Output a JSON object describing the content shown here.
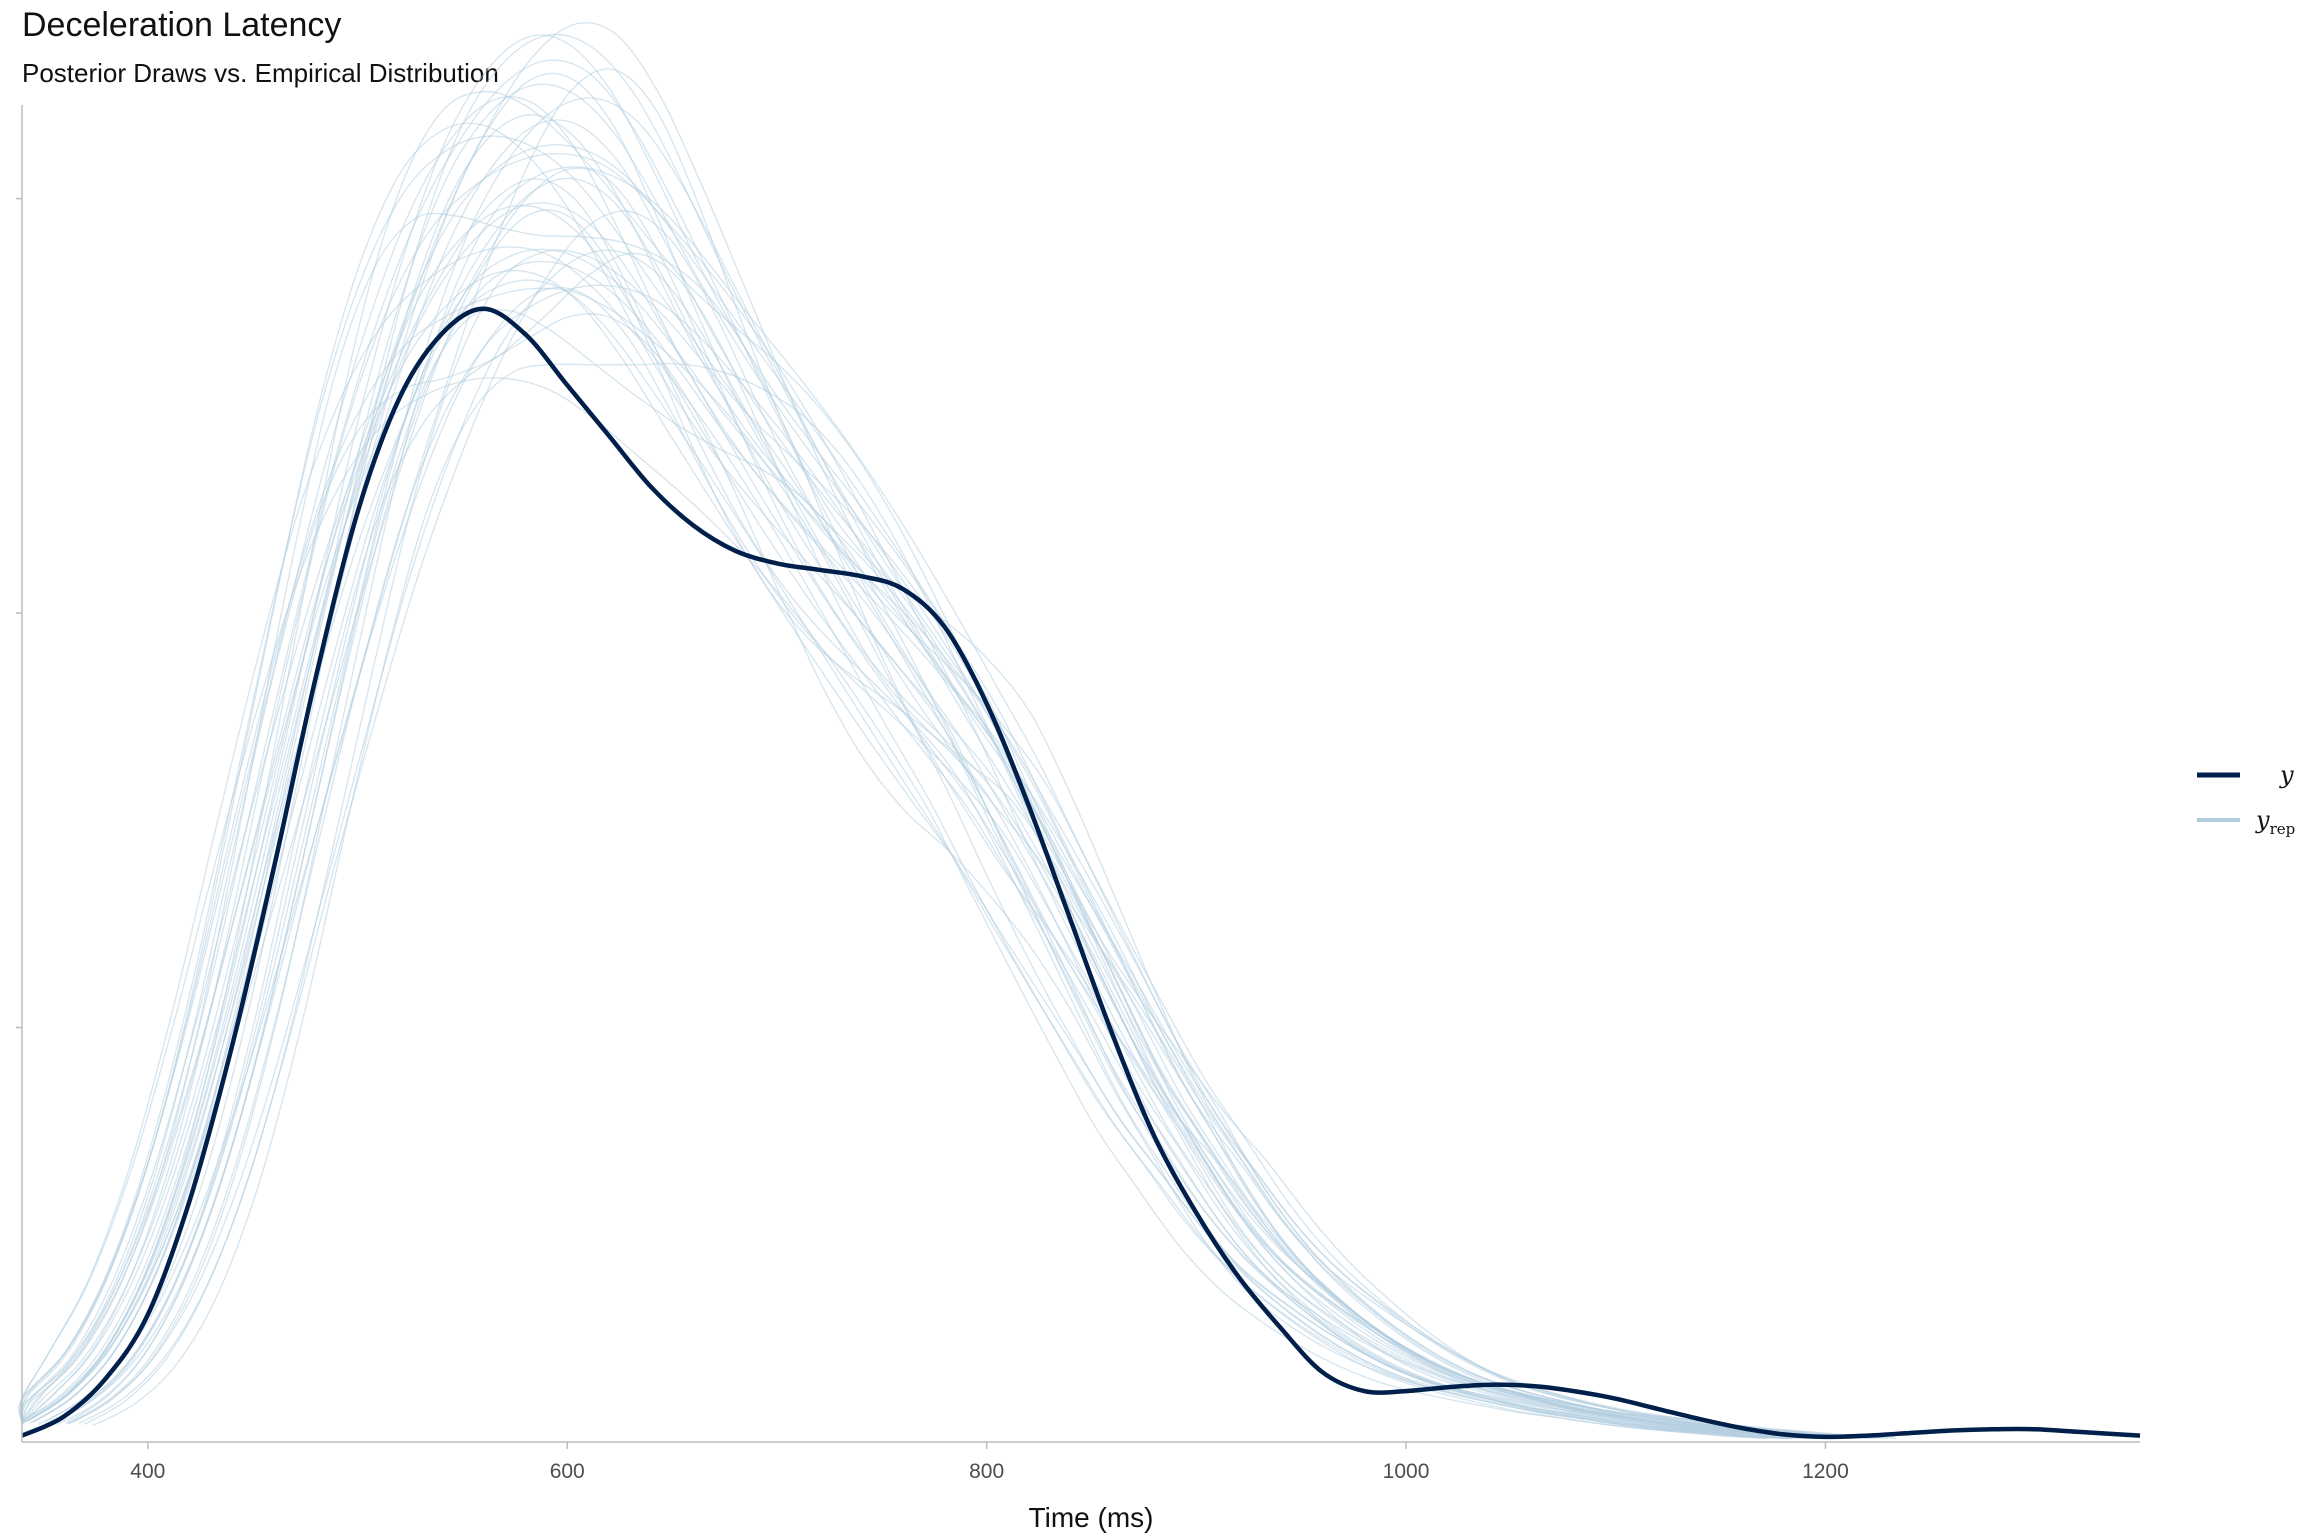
{
  "chart_data": {
    "type": "line",
    "title": "Deceleration Latency",
    "subtitle": "Posterior Draws vs. Empirical Distribution",
    "xlabel": "Time (ms)",
    "ylabel": "",
    "xlim": [
      340,
      1350
    ],
    "ylim": [
      0,
      1
    ],
    "x_ticks": [
      400,
      600,
      800,
      1000,
      1200
    ],
    "x_tick_labels": [
      "400",
      "600",
      "800",
      "1000",
      "1200"
    ],
    "y_tick_labels": [],
    "grid": false,
    "legend_position": "right",
    "legend": [
      {
        "label": "y",
        "color": "#011f4b"
      },
      {
        "label": "y",
        "subscript": "rep",
        "color": "#b3cde0"
      }
    ],
    "colors": {
      "y": "#011f4b",
      "yrep": "#b3cde0",
      "axis": "#bdbdbd"
    },
    "series": [
      {
        "name": "y",
        "x": [
          340,
          360,
          380,
          400,
          420,
          440,
          460,
          480,
          500,
          520,
          540,
          560,
          580,
          600,
          620,
          640,
          660,
          680,
          700,
          720,
          740,
          760,
          780,
          800,
          820,
          840,
          860,
          880,
          900,
          920,
          940,
          960,
          980,
          1000,
          1020,
          1040,
          1060,
          1080,
          1100,
          1120,
          1140,
          1160,
          1180,
          1200,
          1220,
          1240,
          1260,
          1280,
          1300,
          1320,
          1350
        ],
        "values": [
          0.005,
          0.02,
          0.05,
          0.1,
          0.19,
          0.31,
          0.45,
          0.6,
          0.73,
          0.82,
          0.87,
          0.89,
          0.87,
          0.83,
          0.79,
          0.75,
          0.72,
          0.7,
          0.69,
          0.685,
          0.68,
          0.67,
          0.64,
          0.58,
          0.5,
          0.41,
          0.32,
          0.24,
          0.18,
          0.13,
          0.09,
          0.055,
          0.04,
          0.04,
          0.043,
          0.045,
          0.044,
          0.04,
          0.034,
          0.026,
          0.018,
          0.011,
          0.006,
          0.004,
          0.005,
          0.007,
          0.009,
          0.01,
          0.01,
          0.008,
          0.005
        ]
      }
    ],
    "yrep": {
      "name": "yrep",
      "count": 40,
      "x": [
        340,
        360,
        380,
        400,
        420,
        440,
        460,
        480,
        500,
        520,
        540,
        560,
        580,
        600,
        620,
        640,
        660,
        680,
        700,
        720,
        740,
        760,
        780,
        800,
        820,
        840,
        860,
        880,
        900,
        920,
        940,
        960,
        980,
        1000,
        1020,
        1040,
        1060,
        1080,
        1100,
        1120,
        1140,
        1160,
        1180,
        1200
      ],
      "base_values": [
        0.015,
        0.035,
        0.07,
        0.13,
        0.22,
        0.34,
        0.48,
        0.62,
        0.75,
        0.85,
        0.92,
        0.96,
        0.98,
        0.98,
        0.96,
        0.92,
        0.87,
        0.82,
        0.77,
        0.72,
        0.67,
        0.62,
        0.57,
        0.52,
        0.46,
        0.4,
        0.34,
        0.28,
        0.23,
        0.18,
        0.14,
        0.11,
        0.085,
        0.065,
        0.05,
        0.04,
        0.032,
        0.025,
        0.02,
        0.015,
        0.011,
        0.008,
        0.005,
        0.003
      ]
    }
  }
}
